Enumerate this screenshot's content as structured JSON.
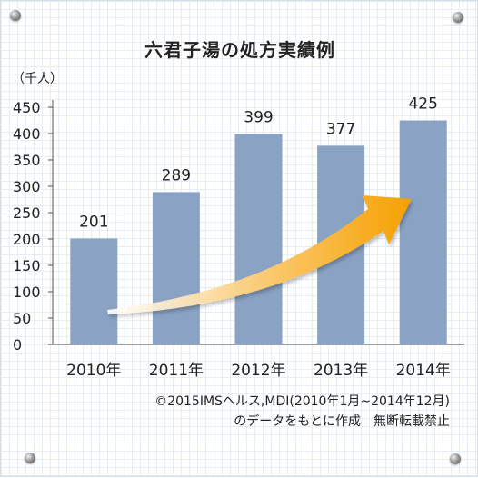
{
  "chart_data": {
    "type": "bar",
    "title": "六君子湯の処方実績例",
    "unit_label": "（千人）",
    "categories": [
      "2010年",
      "2011年",
      "2012年",
      "2013年",
      "2014年"
    ],
    "values": [
      201,
      289,
      399,
      377,
      425
    ],
    "ylim": [
      0,
      450
    ],
    "yticks": [
      0,
      50,
      100,
      150,
      200,
      250,
      300,
      350,
      400,
      450
    ],
    "ytick_labels": [
      "0",
      "50",
      "100",
      "150",
      "200",
      "250",
      "300",
      "350",
      "400",
      "450"
    ],
    "data_labels": [
      "201",
      "289",
      "399",
      "377",
      "425"
    ],
    "bar_color": "#8aa3c4",
    "arrow_color": "#f5a000",
    "grid": false,
    "trend_arrow": true
  },
  "source": {
    "line1": "©2015IMSヘルス,MDI(2010年1月~2014年12月)",
    "line2": "のデータをもとに作成　無断転載禁止"
  }
}
